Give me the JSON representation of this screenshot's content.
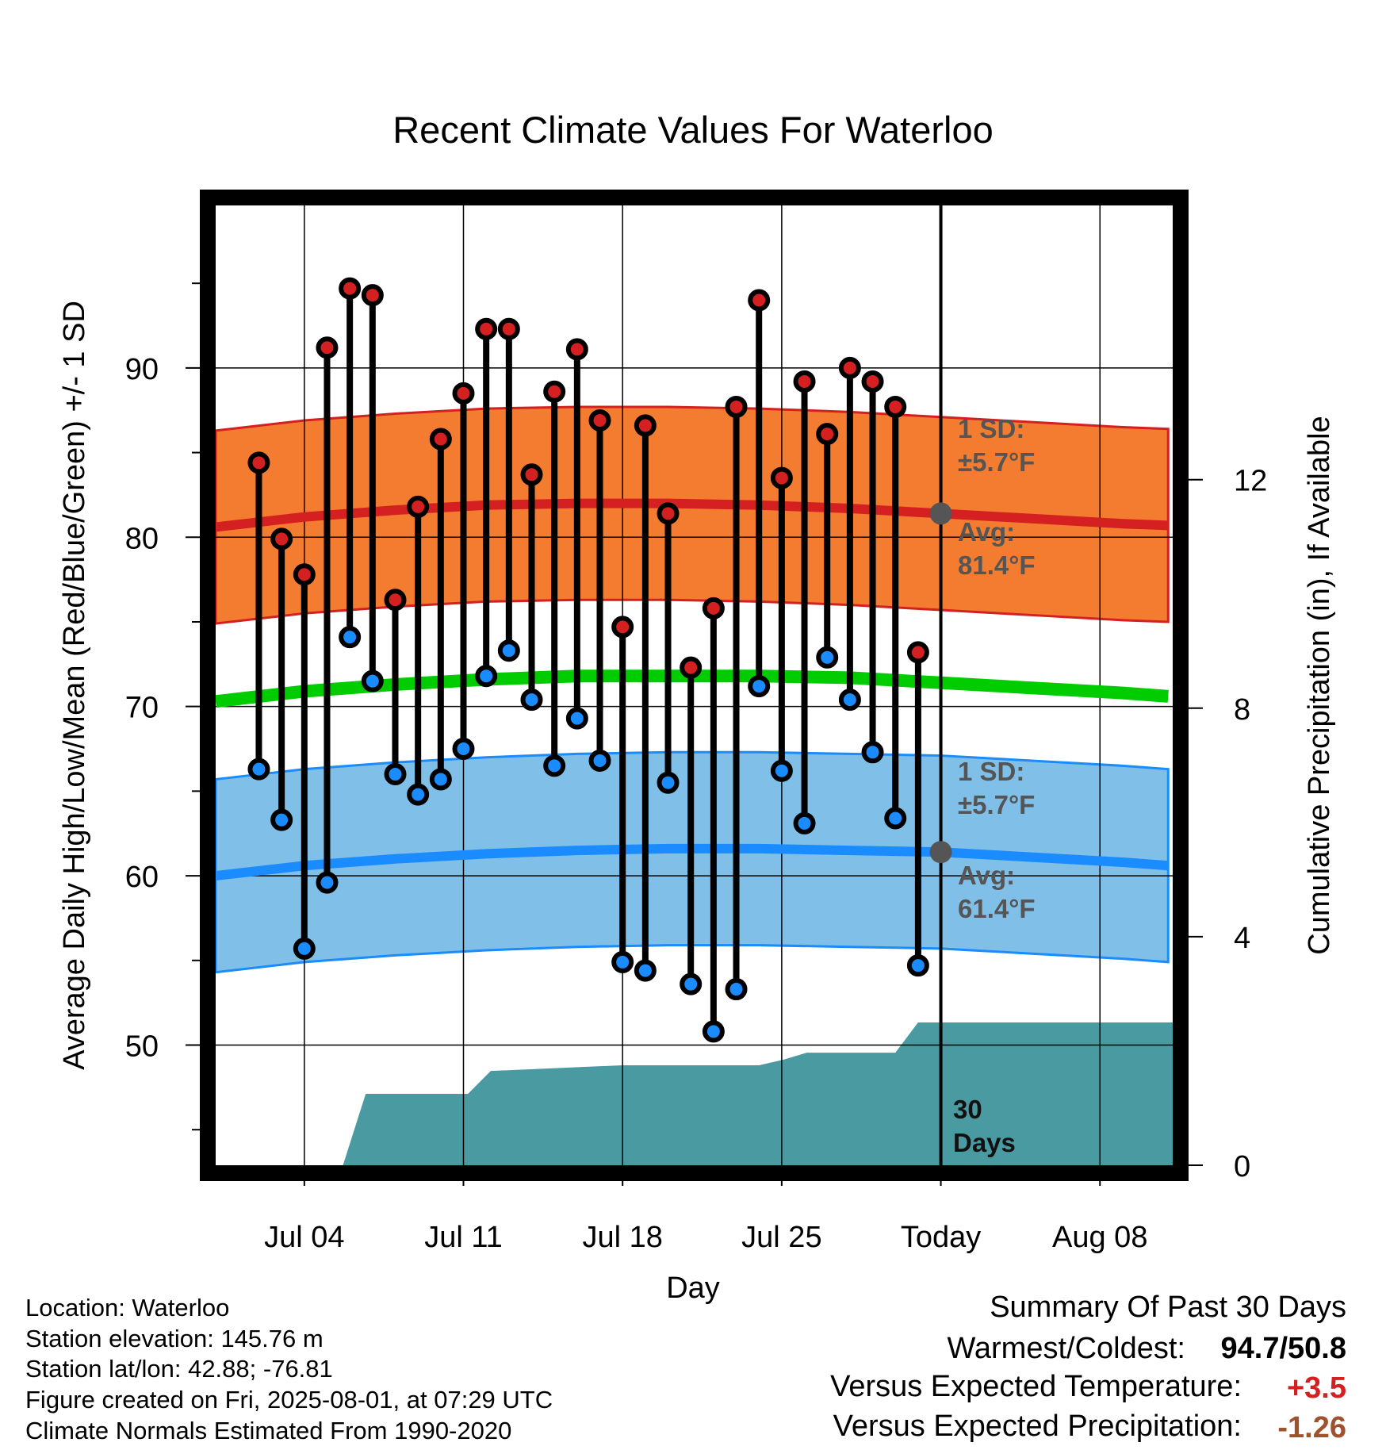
{
  "chart_data": {
    "type": "line",
    "title": "Recent Climate Values For Waterloo",
    "xlabel": "Day",
    "ylabel": "Average Daily High/Low/Mean (Red/Blue/Green) +/- 1 SD",
    "y2label": "Cumulative Precipitation (in), If Available",
    "ylim": [
      42.9,
      99.6
    ],
    "y2lim": [
      0,
      16.8
    ],
    "xlim_days": [
      -31.9,
      10.2
    ],
    "x_ticks": [
      "Jul 04",
      "Jul 11",
      "Jul 18",
      "Jul 25",
      "Today",
      "Aug 08"
    ],
    "x_tick_days": [
      -28,
      -21,
      -14,
      -7,
      0,
      7
    ],
    "y_ticks": [
      50,
      60,
      70,
      80,
      90
    ],
    "y2_ticks": [
      0,
      4,
      8,
      12
    ],
    "grid": true,
    "today_marker_day": 0,
    "daily": {
      "days": [
        -30,
        -29,
        -28,
        -27,
        -26,
        -25,
        -24,
        -23,
        -22,
        -21,
        -20,
        -19,
        -18,
        -17,
        -16,
        -15,
        -14,
        -13,
        -12,
        -11,
        -10,
        -9,
        -8,
        -7,
        -6,
        -5,
        -4,
        -3,
        -2,
        -1
      ],
      "high": [
        84.4,
        79.9,
        77.8,
        91.2,
        94.7,
        94.3,
        76.3,
        81.8,
        85.8,
        88.5,
        92.3,
        92.3,
        83.7,
        88.6,
        91.1,
        86.9,
        74.7,
        86.6,
        81.4,
        72.3,
        75.8,
        87.7,
        94.0,
        83.5,
        89.2,
        86.1,
        90.0,
        89.2,
        87.7,
        73.2
      ],
      "low": [
        66.3,
        63.3,
        55.7,
        59.6,
        74.1,
        71.5,
        66.0,
        64.8,
        65.7,
        67.5,
        71.8,
        73.3,
        70.4,
        66.5,
        69.3,
        66.8,
        54.9,
        54.4,
        65.5,
        53.6,
        50.8,
        53.3,
        71.2,
        66.2,
        63.1,
        72.9,
        70.4,
        67.3,
        63.4,
        54.7
      ]
    },
    "normals": {
      "days": [
        -32,
        -28,
        -24,
        -20,
        -16,
        -12,
        -8,
        -4,
        0,
        4,
        8,
        10
      ],
      "high_avg": [
        80.6,
        81.2,
        81.6,
        81.9,
        82.0,
        82.0,
        81.9,
        81.7,
        81.4,
        81.1,
        80.8,
        80.7
      ],
      "high_sd": 5.7,
      "low_avg": [
        60.0,
        60.6,
        61.0,
        61.3,
        61.5,
        61.6,
        61.6,
        61.5,
        61.4,
        61.1,
        60.8,
        60.6
      ],
      "low_sd": 5.7,
      "mean_avg": [
        70.3,
        70.9,
        71.3,
        71.6,
        71.8,
        71.8,
        71.8,
        71.7,
        71.4,
        71.1,
        70.8,
        70.6
      ]
    },
    "precip_cum": {
      "days": [
        -26.3,
        -25.3,
        -20.8,
        -19.8,
        -14.0,
        -8.0,
        -6.9,
        -5.9,
        -2.0,
        -1.0,
        10.2
      ],
      "values": [
        0,
        1.25,
        1.25,
        1.65,
        1.75,
        1.75,
        1.85,
        1.97,
        1.97,
        2.5,
        2.5
      ]
    },
    "series": [
      {
        "name": "1 SD: ±5.7°F",
        "color": "#f47c30"
      },
      {
        "name": "Avg: 81.4°F",
        "color": "#d42020"
      },
      {
        "name": "1 SD: ±5.7°F",
        "color": "#80c0e8"
      },
      {
        "name": "Avg: 61.4°F",
        "color": "#1a8cff"
      }
    ],
    "annotations": {
      "high_sd_line1": "1 SD:",
      "high_sd_line2": "±5.7°F",
      "high_avg_line1": "Avg:",
      "high_avg_line2": "81.4°F",
      "low_sd_line1": "1 SD:",
      "low_sd_line2": "±5.7°F",
      "low_avg_line1": "Avg:",
      "low_avg_line2": "61.4°F",
      "precip_line1": "30",
      "precip_line2": "Days"
    },
    "colors": {
      "high_band": "#f47c30",
      "high_avg": "#d42020",
      "low_band": "#80c0e8",
      "low_avg": "#1a8cff",
      "mean": "#00cc00",
      "precip": "#4a9aa2",
      "high_dot": "#d42020",
      "low_dot": "#1a8cff",
      "avg_marker": "#555555"
    }
  },
  "info": {
    "location": "Location: Waterloo",
    "elevation": "Station elevation: 145.76 m",
    "latlon": "Station lat/lon: 42.88; -76.81",
    "created": "Figure created on Fri, 2025-08-01, at 07:29 UTC",
    "normals": "Climate Normals Estimated From 1990-2020"
  },
  "summary": {
    "heading": "Summary Of Past 30 Days",
    "warm_cold_label": "Warmest/Coldest:",
    "warm_cold_value": "94.7/50.8",
    "temp_label": "Versus Expected Temperature:",
    "temp_value": "+3.5",
    "temp_color": "#d42020",
    "precip_label": "Versus Expected Precipitation:",
    "precip_value": "-1.26",
    "precip_color": "#a0522d"
  }
}
